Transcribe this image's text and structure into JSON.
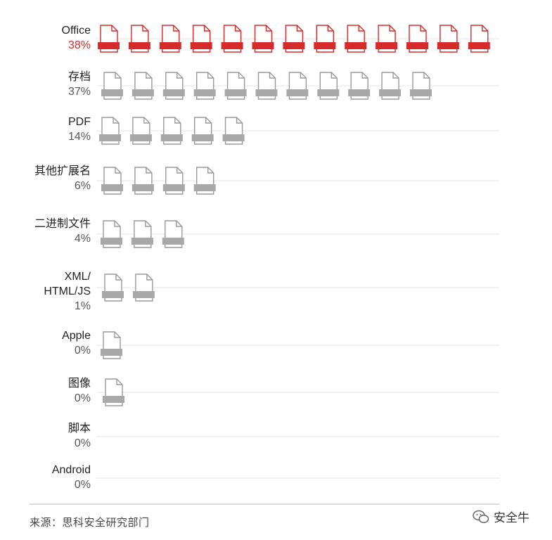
{
  "chart_data": {
    "type": "bar",
    "subtype": "pictogram",
    "categories": [
      "Office",
      "存档",
      "PDF",
      "其他扩展名",
      "二进制文件",
      "XML/\nHTML/JS",
      "Apple",
      "图像",
      "脚本",
      "Android"
    ],
    "values": [
      38,
      37,
      14,
      6,
      4,
      1,
      0,
      0,
      0,
      0
    ],
    "value_labels": [
      "38%",
      "37%",
      "14%",
      "6%",
      "4%",
      "1%",
      "0%",
      "0%",
      "0%",
      "0%"
    ],
    "icon_counts": [
      13,
      11,
      5,
      4,
      3,
      2,
      1,
      1,
      0,
      0
    ],
    "highlight_index": 0,
    "colors": {
      "highlight": "#d52b2b",
      "normal_outline": "#9a9a9a",
      "normal_fill": "#a8a8a8",
      "gridline": "#e6e6e6",
      "label": "#222222",
      "value": "#555555",
      "baseline": "#cfcfcf"
    },
    "icon": "document-icon",
    "unit": "%"
  },
  "footer": {
    "source": "来源：思科安全研究部门",
    "brand": "安全牛",
    "brand_icon": "wechat-icon"
  }
}
